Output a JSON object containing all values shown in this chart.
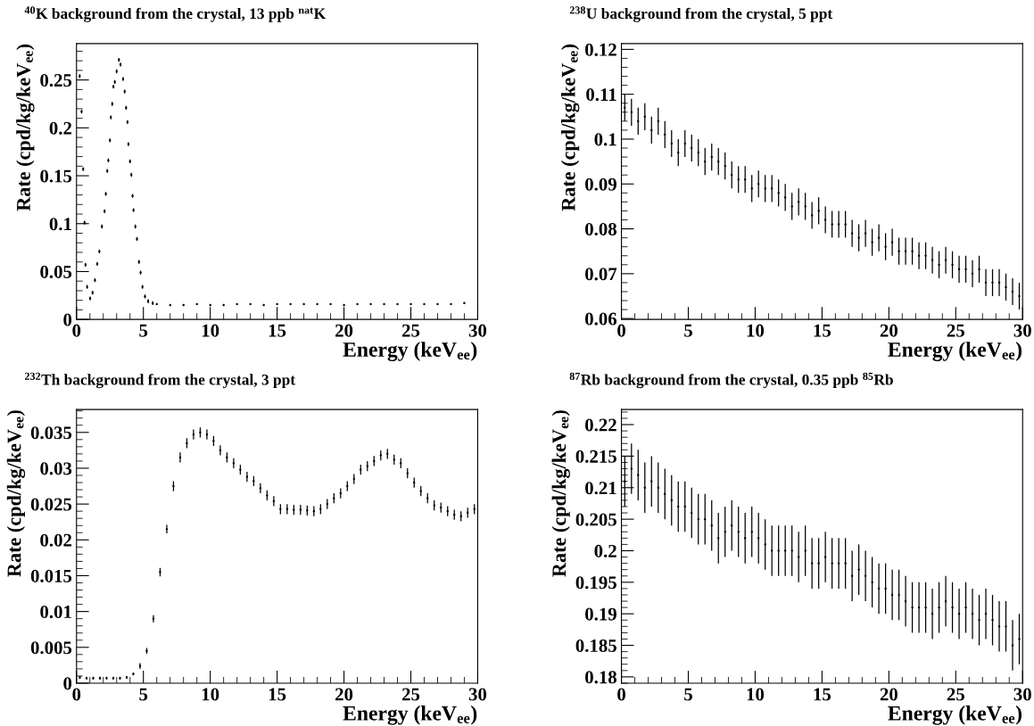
{
  "chart_data": [
    {
      "type": "scatter",
      "title": "$^{40}$K background from the crystal, 13 ppb $^{nat}$K",
      "xlabel": "Energy (keV$_{ee}$)",
      "ylabel": "Rate (cpd/kg/keV$_{ee}$)",
      "xlim": [
        0,
        30
      ],
      "xticks": [
        0,
        5,
        10,
        15,
        20,
        25,
        30
      ],
      "ylim": [
        0,
        0.288
      ],
      "yticks": [
        0,
        0.05,
        0.1,
        0.15,
        0.2,
        0.25
      ],
      "grid": false,
      "marker": "circle",
      "series": [
        {
          "color": "#000000",
          "x": [
            0.24,
            0.38,
            0.5,
            0.6,
            0.67,
            0.79,
            1.02,
            1.2,
            1.38,
            1.55,
            1.71,
            1.9,
            2.1,
            2.19,
            2.3,
            2.38,
            2.5,
            2.57,
            2.67,
            2.76,
            2.86,
            3.0,
            3.17,
            3.29,
            3.48,
            3.6,
            3.71,
            3.81,
            3.88,
            4.0,
            4.1,
            4.19,
            4.26,
            4.4,
            4.52,
            4.67,
            4.79,
            4.93,
            5.12,
            5.36,
            5.7,
            6,
            7,
            8,
            9,
            10,
            11,
            12,
            13,
            14,
            15,
            16,
            17,
            18,
            19,
            20,
            21,
            22,
            23,
            24,
            25,
            26,
            27,
            28,
            29
          ],
          "values": [
            0.254,
            0.217,
            0.157,
            0.101,
            0.057,
            0.034,
            0.022,
            0.028,
            0.041,
            0.058,
            0.071,
            0.097,
            0.113,
            0.131,
            0.155,
            0.166,
            0.187,
            0.211,
            0.225,
            0.243,
            0.248,
            0.259,
            0.271,
            0.266,
            0.251,
            0.238,
            0.221,
            0.206,
            0.183,
            0.165,
            0.151,
            0.129,
            0.114,
            0.097,
            0.084,
            0.06,
            0.049,
            0.034,
            0.024,
            0.019,
            0.017,
            0.016,
            0.015,
            0.015,
            0.016,
            0.015,
            0.015,
            0.016,
            0.016,
            0.015,
            0.016,
            0.016,
            0.016,
            0.016,
            0.016,
            0.015,
            0.016,
            0.016,
            0.016,
            0.016,
            0.016,
            0.016,
            0.016,
            0.016,
            0.017
          ],
          "errors": [
            0.002,
            0.002,
            0.002,
            0.002,
            0.002,
            0.002,
            0.002,
            0.002,
            0.002,
            0.002,
            0.002,
            0.002,
            0.002,
            0.002,
            0.002,
            0.002,
            0.002,
            0.002,
            0.002,
            0.002,
            0.002,
            0.002,
            0.002,
            0.002,
            0.002,
            0.002,
            0.002,
            0.002,
            0.002,
            0.002,
            0.002,
            0.002,
            0.002,
            0.002,
            0.002,
            0.002,
            0.002,
            0.002,
            0.002,
            0.002,
            0.002,
            0.001,
            0.001,
            0.001,
            0.001,
            0.001,
            0.001,
            0.001,
            0.001,
            0.001,
            0.001,
            0.001,
            0.001,
            0.001,
            0.001,
            0.001,
            0.001,
            0.001,
            0.001,
            0.001,
            0.001,
            0.001,
            0.001,
            0.001,
            0.001
          ]
        }
      ]
    },
    {
      "type": "scatter",
      "title": "$^{238}$U background from the crystal, 5 ppt",
      "xlabel": "Energy (keV$_{ee}$)",
      "ylabel": "Rate (cpd/kg/keV$_{ee}$)",
      "xlim": [
        0,
        30
      ],
      "xticks": [
        0,
        5,
        10,
        15,
        20,
        25,
        30
      ],
      "ylim": [
        0.0598,
        0.1213
      ],
      "yticks": [
        0.06,
        0.07,
        0.08,
        0.09,
        0.1,
        0.11,
        0.12
      ],
      "grid": false,
      "marker": "circle",
      "series": [
        {
          "color": "#000000",
          "x": [
            0.25,
            0.75,
            1.25,
            1.75,
            2.25,
            2.75,
            3.25,
            3.75,
            4.25,
            4.75,
            5.25,
            5.75,
            6.25,
            6.75,
            7.25,
            7.75,
            8.25,
            8.75,
            9.25,
            9.75,
            10.25,
            10.75,
            11.25,
            11.75,
            12.25,
            12.75,
            13.25,
            13.75,
            14.25,
            14.75,
            15.25,
            15.75,
            16.25,
            16.75,
            17.25,
            17.75,
            18.25,
            18.75,
            19.25,
            19.75,
            20.25,
            20.75,
            21.25,
            21.75,
            22.25,
            22.75,
            23.25,
            23.75,
            24.25,
            24.75,
            25.25,
            25.75,
            26.25,
            26.75,
            27.25,
            27.75,
            28.25,
            28.75,
            29.25,
            29.75
          ],
          "values": [
            0.107,
            0.106,
            0.104,
            0.105,
            0.102,
            0.104,
            0.101,
            0.099,
            0.097,
            0.099,
            0.098,
            0.097,
            0.095,
            0.096,
            0.095,
            0.094,
            0.092,
            0.091,
            0.091,
            0.089,
            0.09,
            0.089,
            0.089,
            0.088,
            0.087,
            0.085,
            0.086,
            0.085,
            0.083,
            0.084,
            0.082,
            0.081,
            0.081,
            0.081,
            0.079,
            0.078,
            0.079,
            0.077,
            0.078,
            0.076,
            0.077,
            0.075,
            0.075,
            0.075,
            0.074,
            0.074,
            0.073,
            0.072,
            0.073,
            0.072,
            0.071,
            0.071,
            0.07,
            0.071,
            0.068,
            0.068,
            0.068,
            0.067,
            0.066,
            0.065
          ],
          "errors": [
            0.003,
            0.003,
            0.003,
            0.003,
            0.003,
            0.003,
            0.003,
            0.003,
            0.003,
            0.003,
            0.003,
            0.003,
            0.003,
            0.003,
            0.003,
            0.003,
            0.003,
            0.003,
            0.003,
            0.003,
            0.003,
            0.003,
            0.003,
            0.003,
            0.003,
            0.003,
            0.003,
            0.003,
            0.003,
            0.003,
            0.003,
            0.003,
            0.003,
            0.003,
            0.003,
            0.003,
            0.003,
            0.003,
            0.003,
            0.003,
            0.003,
            0.003,
            0.003,
            0.003,
            0.003,
            0.003,
            0.003,
            0.003,
            0.003,
            0.003,
            0.003,
            0.003,
            0.003,
            0.003,
            0.003,
            0.003,
            0.003,
            0.003,
            0.003,
            0.003
          ]
        }
      ]
    },
    {
      "type": "scatter",
      "title": "$^{232}$Th background from the crystal, 3 ppt",
      "xlabel": "Energy (keV$_{ee}$)",
      "ylabel": "Rate (cpd/kg/keV$_{ee}$)",
      "xlim": [
        0,
        30
      ],
      "xticks": [
        0,
        5,
        10,
        15,
        20,
        25,
        30
      ],
      "ylim": [
        0,
        0.0382
      ],
      "yticks": [
        0,
        0.005,
        0.01,
        0.015,
        0.02,
        0.025,
        0.03,
        0.035
      ],
      "grid": false,
      "marker": "circle",
      "series": [
        {
          "color": "#000000",
          "x": [
            0.25,
            0.75,
            1.25,
            1.75,
            2.25,
            2.75,
            3.25,
            3.75,
            4.25,
            4.75,
            5.25,
            5.75,
            6.25,
            6.75,
            7.25,
            7.75,
            8.25,
            8.75,
            9.25,
            9.75,
            10.25,
            10.75,
            11.25,
            11.75,
            12.25,
            12.75,
            13.25,
            13.75,
            14.25,
            14.75,
            15.25,
            15.75,
            16.25,
            16.75,
            17.25,
            17.75,
            18.25,
            18.75,
            19.25,
            19.75,
            20.25,
            20.75,
            21.25,
            21.75,
            22.25,
            22.75,
            23.25,
            23.75,
            24.25,
            24.75,
            25.25,
            25.75,
            26.25,
            26.75,
            27.25,
            27.75,
            28.25,
            28.75,
            29.25,
            29.75
          ],
          "values": [
            0.0008,
            0.0007,
            0.0007,
            0.0007,
            0.0007,
            0.0007,
            0.0007,
            0.0008,
            0.0013,
            0.0024,
            0.0045,
            0.009,
            0.0155,
            0.0215,
            0.0275,
            0.0315,
            0.0335,
            0.0347,
            0.035,
            0.0347,
            0.0338,
            0.0325,
            0.0315,
            0.0307,
            0.0298,
            0.0288,
            0.0282,
            0.0272,
            0.0262,
            0.0254,
            0.0243,
            0.0243,
            0.0242,
            0.0242,
            0.0241,
            0.024,
            0.0243,
            0.025,
            0.0258,
            0.0265,
            0.0275,
            0.0285,
            0.0298,
            0.0303,
            0.031,
            0.0318,
            0.032,
            0.0312,
            0.0307,
            0.0293,
            0.028,
            0.0268,
            0.0258,
            0.0248,
            0.0245,
            0.024,
            0.0235,
            0.0233,
            0.0238,
            0.0243
          ],
          "errors": [
            0.0002,
            0.0002,
            0.0002,
            0.0002,
            0.0002,
            0.0002,
            0.0002,
            0.0002,
            0.0002,
            0.0004,
            0.0004,
            0.0005,
            0.0006,
            0.0006,
            0.0007,
            0.0007,
            0.0007,
            0.0007,
            0.0007,
            0.0007,
            0.0007,
            0.0007,
            0.0007,
            0.0007,
            0.0007,
            0.0007,
            0.0007,
            0.0007,
            0.0007,
            0.0007,
            0.0007,
            0.0007,
            0.0007,
            0.0007,
            0.0007,
            0.0007,
            0.0007,
            0.0007,
            0.0007,
            0.0007,
            0.0007,
            0.0007,
            0.0007,
            0.0007,
            0.0007,
            0.0007,
            0.0007,
            0.0007,
            0.0007,
            0.0007,
            0.0007,
            0.0007,
            0.0007,
            0.0007,
            0.0007,
            0.0007,
            0.0007,
            0.0007,
            0.0007,
            0.0007
          ]
        }
      ]
    },
    {
      "type": "scatter",
      "title": "$^{87}$Rb background from the crystal, 0.35 ppb $^{85}$Rb",
      "xlabel": "Energy (keV$_{ee}$)",
      "ylabel": "Rate (cpd/kg/keV$_{ee}$)",
      "xlim": [
        0,
        30
      ],
      "xticks": [
        0,
        5,
        10,
        15,
        20,
        25,
        30
      ],
      "ylim": [
        0.179,
        0.2224
      ],
      "yticks": [
        0.18,
        0.185,
        0.19,
        0.195,
        0.2,
        0.205,
        0.21,
        0.215,
        0.22
      ],
      "grid": false,
      "marker": "circle",
      "series": [
        {
          "color": "#000000",
          "x": [
            0.25,
            0.75,
            1.25,
            1.75,
            2.25,
            2.75,
            3.25,
            3.75,
            4.25,
            4.75,
            5.25,
            5.75,
            6.25,
            6.75,
            7.25,
            7.75,
            8.25,
            8.75,
            9.25,
            9.75,
            10.25,
            10.75,
            11.25,
            11.75,
            12.25,
            12.75,
            13.25,
            13.75,
            14.25,
            14.75,
            15.25,
            15.75,
            16.25,
            16.75,
            17.25,
            17.75,
            18.25,
            18.75,
            19.25,
            19.75,
            20.25,
            20.75,
            21.25,
            21.75,
            22.25,
            22.75,
            23.25,
            23.75,
            24.25,
            24.75,
            25.25,
            25.75,
            26.25,
            26.75,
            27.25,
            27.75,
            28.25,
            28.75,
            29.25,
            29.75
          ],
          "values": [
            0.211,
            0.213,
            0.212,
            0.21,
            0.211,
            0.21,
            0.209,
            0.208,
            0.207,
            0.207,
            0.206,
            0.205,
            0.205,
            0.204,
            0.202,
            0.203,
            0.204,
            0.203,
            0.202,
            0.203,
            0.202,
            0.201,
            0.2,
            0.2,
            0.2,
            0.2,
            0.199,
            0.2,
            0.198,
            0.198,
            0.199,
            0.198,
            0.198,
            0.198,
            0.196,
            0.197,
            0.196,
            0.195,
            0.194,
            0.194,
            0.193,
            0.193,
            0.192,
            0.191,
            0.191,
            0.191,
            0.19,
            0.191,
            0.192,
            0.191,
            0.19,
            0.191,
            0.19,
            0.189,
            0.19,
            0.189,
            0.188,
            0.188,
            0.185,
            0.186
          ],
          "errors": [
            0.004,
            0.004,
            0.004,
            0.004,
            0.004,
            0.004,
            0.004,
            0.004,
            0.004,
            0.004,
            0.004,
            0.004,
            0.004,
            0.004,
            0.004,
            0.004,
            0.004,
            0.004,
            0.004,
            0.004,
            0.004,
            0.004,
            0.004,
            0.004,
            0.004,
            0.004,
            0.004,
            0.004,
            0.004,
            0.004,
            0.004,
            0.004,
            0.004,
            0.004,
            0.004,
            0.004,
            0.004,
            0.004,
            0.004,
            0.004,
            0.004,
            0.004,
            0.004,
            0.004,
            0.004,
            0.004,
            0.004,
            0.004,
            0.004,
            0.004,
            0.004,
            0.004,
            0.004,
            0.004,
            0.004,
            0.004,
            0.004,
            0.004,
            0.004,
            0.004
          ]
        }
      ]
    }
  ]
}
